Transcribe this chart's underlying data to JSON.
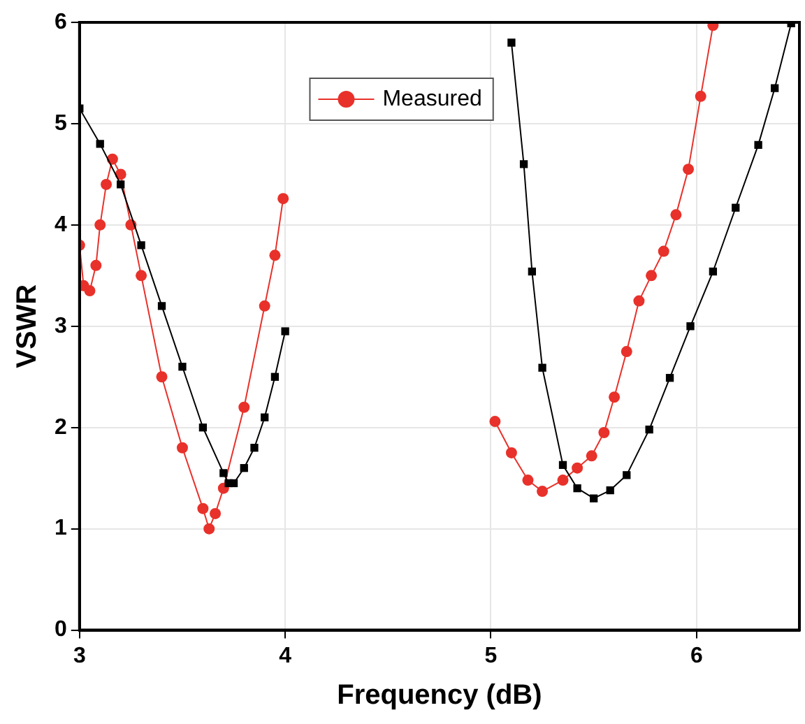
{
  "chart_data": {
    "type": "line",
    "xlabel": "Frequency (dB)",
    "ylabel": "VSWR",
    "xlim": [
      3,
      6.5
    ],
    "xticks": [
      3,
      4,
      5,
      6
    ],
    "ylim": [
      0,
      6
    ],
    "yticks": [
      0,
      1,
      2,
      3,
      4,
      5,
      6
    ],
    "grid": true,
    "legend": "top",
    "line_style": "solid",
    "series": [
      {
        "color": "#000000",
        "marker": "square",
        "x": [
          3.0,
          3.1,
          3.2,
          3.3,
          3.4,
          3.5,
          3.6,
          3.7,
          3.725,
          3.75,
          3.8,
          3.85,
          3.9,
          3.95,
          4.0,
          4.5,
          5.1,
          5.16,
          5.2,
          5.25,
          5.35,
          5.42,
          5.5,
          5.58,
          5.66,
          5.77,
          5.87,
          5.97,
          6.08,
          6.19,
          6.3,
          6.38,
          6.46
        ],
        "values": [
          5.15,
          4.8,
          4.4,
          3.8,
          3.2,
          2.6,
          2.0,
          1.55,
          1.45,
          1.45,
          1.6,
          1.8,
          2.1,
          2.5,
          2.95,
          null,
          5.8,
          4.6,
          3.54,
          2.59,
          1.63,
          1.4,
          1.3,
          1.38,
          1.53,
          1.98,
          2.49,
          3.0,
          3.54,
          4.17,
          4.79,
          5.35,
          5.99
        ]
      },
      {
        "name": "Measured",
        "color": "#e8312a",
        "marker": "circle",
        "x": [
          3.0,
          3.02,
          3.05,
          3.08,
          3.1,
          3.13,
          3.16,
          3.2,
          3.25,
          3.3,
          3.4,
          3.5,
          3.6,
          3.63,
          3.66,
          3.7,
          3.8,
          3.9,
          3.95,
          3.99,
          4.5,
          5.02,
          5.1,
          5.18,
          5.25,
          5.35,
          5.42,
          5.49,
          5.55,
          5.6,
          5.66,
          5.72,
          5.78,
          5.84,
          5.9,
          5.96,
          6.02,
          6.08
        ],
        "values": [
          3.8,
          3.4,
          3.35,
          3.6,
          4.0,
          4.4,
          4.65,
          4.5,
          4.0,
          3.5,
          2.5,
          1.8,
          1.2,
          1.0,
          1.15,
          1.4,
          2.2,
          3.2,
          3.7,
          4.26,
          null,
          2.06,
          1.75,
          1.48,
          1.37,
          1.48,
          1.6,
          1.72,
          1.95,
          2.3,
          2.75,
          3.25,
          3.5,
          3.74,
          4.1,
          4.55,
          5.27,
          5.97
        ]
      }
    ]
  }
}
